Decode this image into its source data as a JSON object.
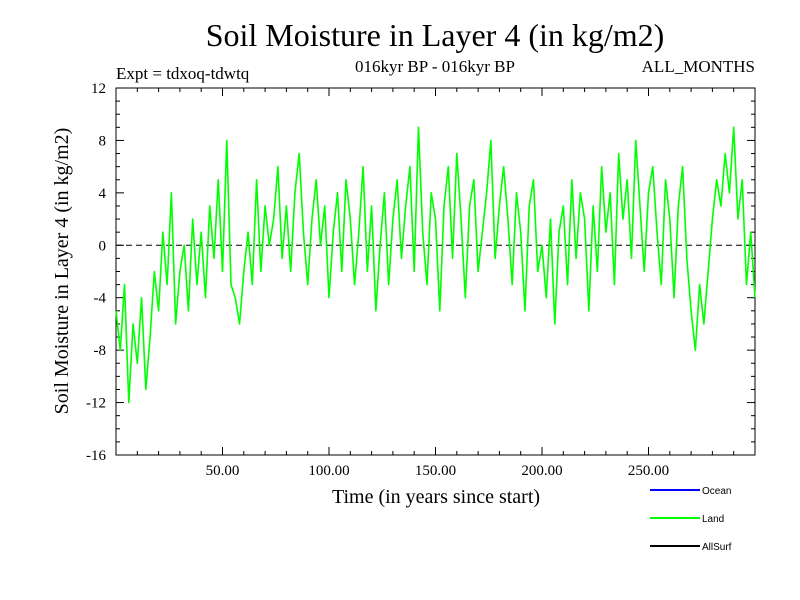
{
  "header": {
    "title": "Soil Moisture in Layer 4 (in kg/m2)",
    "expt": "Expt = tdxoq-tdwtq",
    "period": "016kyr BP - 016kyr BP",
    "months": "ALL_MONTHS"
  },
  "chart_data": {
    "type": "line",
    "xlabel": "Time (in years since start)",
    "ylabel": "Soil Moisture in Layer 4 (in kg/m2)",
    "xlim": [
      0,
      300
    ],
    "ylim": [
      -16,
      12
    ],
    "x_ticks": [
      50,
      100,
      150,
      200,
      250
    ],
    "x_tick_labels": [
      "50.00",
      "100.00",
      "150.00",
      "200.00",
      "250.00"
    ],
    "y_ticks": [
      -16,
      -12,
      -8,
      -4,
      0,
      4,
      8,
      12
    ],
    "y_tick_labels": [
      "-16",
      "-12",
      "-8",
      "-4",
      "0",
      "4",
      "8",
      "12"
    ],
    "reference_line": 0,
    "series": [
      {
        "name": "Ocean",
        "color": "#0000ff",
        "values": []
      },
      {
        "name": "Land",
        "color": "#00ff00",
        "x": [
          0,
          2,
          4,
          6,
          8,
          10,
          12,
          14,
          16,
          18,
          20,
          22,
          24,
          26,
          28,
          30,
          32,
          34,
          36,
          38,
          40,
          42,
          44,
          46,
          48,
          50,
          52,
          54,
          56,
          58,
          60,
          62,
          64,
          66,
          68,
          70,
          72,
          74,
          76,
          78,
          80,
          82,
          84,
          86,
          88,
          90,
          92,
          94,
          96,
          98,
          100,
          102,
          104,
          106,
          108,
          110,
          112,
          114,
          116,
          118,
          120,
          122,
          124,
          126,
          128,
          130,
          132,
          134,
          136,
          138,
          140,
          142,
          144,
          146,
          148,
          150,
          152,
          154,
          156,
          158,
          160,
          162,
          164,
          166,
          168,
          170,
          172,
          174,
          176,
          178,
          180,
          182,
          184,
          186,
          188,
          190,
          192,
          194,
          196,
          198,
          200,
          202,
          204,
          206,
          208,
          210,
          212,
          214,
          216,
          218,
          220,
          222,
          224,
          226,
          228,
          230,
          232,
          234,
          236,
          238,
          240,
          242,
          244,
          246,
          248,
          250,
          252,
          254,
          256,
          258,
          260,
          262,
          264,
          266,
          268,
          270,
          272,
          274,
          276,
          278,
          280,
          282,
          284,
          286,
          288,
          290,
          292,
          294,
          296,
          298,
          300
        ],
        "values": [
          -5,
          -8,
          -3,
          -12,
          -6,
          -9,
          -4,
          -11,
          -7,
          -2,
          -5,
          1,
          -3,
          4,
          -6,
          -2,
          0,
          -5,
          2,
          -3,
          1,
          -4,
          3,
          -1,
          5,
          -2,
          8,
          -3,
          -4,
          -6,
          -2,
          1,
          -3,
          5,
          -2,
          3,
          0,
          2,
          6,
          -1,
          3,
          -2,
          4,
          7,
          1,
          -3,
          2,
          5,
          0,
          3,
          -4,
          1,
          4,
          -2,
          5,
          2,
          -3,
          1,
          6,
          -2,
          3,
          -5,
          0,
          4,
          -3,
          2,
          5,
          -1,
          3,
          6,
          -2,
          9,
          1,
          -3,
          4,
          2,
          -5,
          3,
          6,
          -1,
          7,
          2,
          -4,
          3,
          5,
          -2,
          1,
          4,
          8,
          -1,
          3,
          6,
          2,
          -3,
          4,
          1,
          -5,
          3,
          5,
          -2,
          0,
          -4,
          2,
          -6,
          1,
          3,
          -3,
          5,
          -1,
          4,
          2,
          -5,
          3,
          -2,
          6,
          1,
          4,
          -3,
          7,
          2,
          5,
          -1,
          8,
          3,
          -2,
          4,
          6,
          1,
          -3,
          5,
          2,
          -4,
          3,
          6,
          -1,
          -5,
          -8,
          -3,
          -6,
          -2,
          2,
          5,
          3,
          7,
          4,
          9,
          2,
          5,
          -3,
          1,
          -4
        ]
      },
      {
        "name": "AllSurf",
        "color": "#000000",
        "values": []
      }
    ],
    "legend_position": "bottom-right",
    "grid": false
  }
}
